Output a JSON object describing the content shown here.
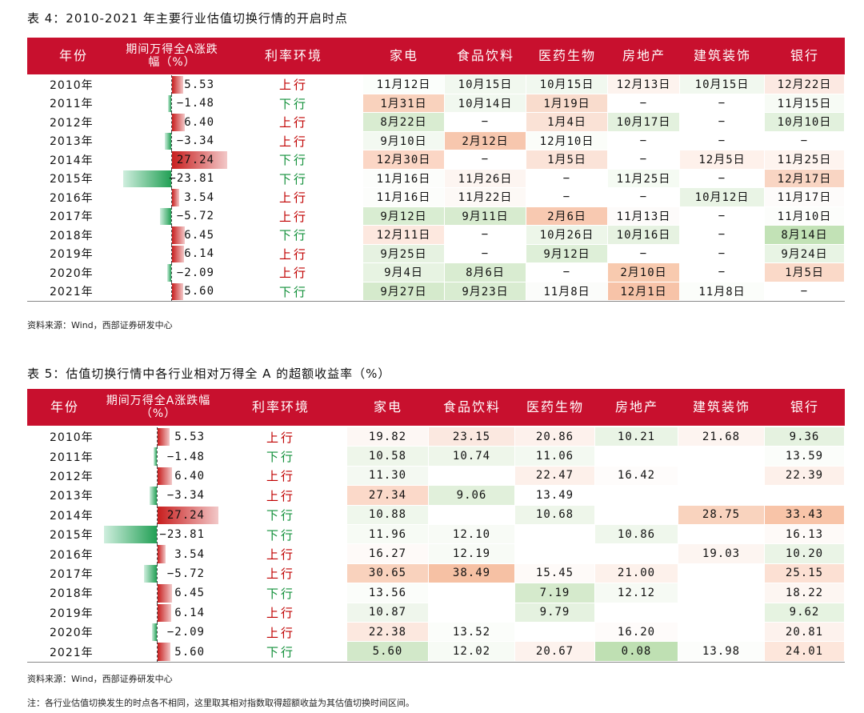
{
  "table4": {
    "caption": "表 4：2010-2021 年主要行业估值切换行情的开启时点",
    "headers": [
      "年份",
      "期间万得全A涨跌幅（%）",
      "利率环境",
      "家电",
      "食品饮料",
      "医药生物",
      "房地产",
      "建筑装饰",
      "银行"
    ],
    "rows": [
      {
        "year": "2010年",
        "change": "5.53",
        "pct": 5.53,
        "rate": "上行",
        "cells": [
          "11月12日",
          "10月15日",
          "10月15日",
          "12月13日",
          "10月15日",
          "12月22日"
        ]
      },
      {
        "year": "2011年",
        "change": "−1.48",
        "pct": -1.48,
        "rate": "下行",
        "cells": [
          "1月31日",
          "10月14日",
          "1月19日",
          "−",
          "−",
          "11月15日"
        ]
      },
      {
        "year": "2012年",
        "change": "6.40",
        "pct": 6.4,
        "rate": "上行",
        "cells": [
          "8月22日",
          "−",
          "1月4日",
          "10月17日",
          "−",
          "10月10日"
        ]
      },
      {
        "year": "2013年",
        "change": "−3.34",
        "pct": -3.34,
        "rate": "上行",
        "cells": [
          "9月10日",
          "2月12日",
          "12月10日",
          "−",
          "−",
          "−"
        ]
      },
      {
        "year": "2014年",
        "change": "27.24",
        "pct": 27.24,
        "rate": "下行",
        "cells": [
          "12月30日",
          "−",
          "1月5日",
          "−",
          "12月5日",
          "11月25日"
        ]
      },
      {
        "year": "2015年",
        "change": "−23.81",
        "pct": -23.81,
        "rate": "下行",
        "cells": [
          "11月16日",
          "11月26日",
          "−",
          "11月25日",
          "−",
          "12月17日"
        ]
      },
      {
        "year": "2016年",
        "change": "3.54",
        "pct": 3.54,
        "rate": "上行",
        "cells": [
          "11月16日",
          "11月22日",
          "−",
          "−",
          "10月12日",
          "11月17日"
        ]
      },
      {
        "year": "2017年",
        "change": "−5.72",
        "pct": -5.72,
        "rate": "上行",
        "cells": [
          "9月12日",
          "9月11日",
          "2月6日",
          "11月13日",
          "−",
          "11月10日"
        ]
      },
      {
        "year": "2018年",
        "change": "6.45",
        "pct": 6.45,
        "rate": "下行",
        "cells": [
          "12月11日",
          "−",
          "10月26日",
          "10月16日",
          "−",
          "8月14日"
        ]
      },
      {
        "year": "2019年",
        "change": "6.14",
        "pct": 6.14,
        "rate": "上行",
        "cells": [
          "9月25日",
          "−",
          "9月12日",
          "−",
          "−",
          "9月24日"
        ]
      },
      {
        "year": "2020年",
        "change": "−2.09",
        "pct": -2.09,
        "rate": "上行",
        "cells": [
          "9月4日",
          "8月6日",
          "−",
          "2月10日",
          "−",
          "1月5日"
        ]
      },
      {
        "year": "2021年",
        "change": "5.60",
        "pct": 5.6,
        "rate": "下行",
        "cells": [
          "9月27日",
          "9月23日",
          "11月8日",
          "12月1日",
          "11月8日",
          "−"
        ]
      }
    ],
    "colors": [
      [
        "#fbfefb",
        "#f1f8ef",
        "#f1f8ef",
        "#fdf3ee",
        "#f1f8ef",
        "#fce9e2"
      ],
      [
        "#f9d2bd",
        "#f1f8ef",
        "#f9dccd",
        "#ffffff",
        "#ffffff",
        "#f7fbf5"
      ],
      [
        "#d9ecd1",
        "#ffffff",
        "#fae2d6",
        "#e3f1de",
        "#ffffff",
        "#e2f1dd"
      ],
      [
        "#f3f9f1",
        "#f7c7ae",
        "#fbfdf9",
        "#ffffff",
        "#ffffff",
        "#ffffff"
      ],
      [
        "#fbd6c5",
        "#ffffff",
        "#fbe3d8",
        "#ffffff",
        "#fef1eb",
        "#fef4ef"
      ],
      [
        "#fcfdfb",
        "#fdf5f1",
        "#ffffff",
        "#f5fbf3",
        "#ffffff",
        "#f9d5c3"
      ],
      [
        "#fcfdfb",
        "#fdf9f6",
        "#ffffff",
        "#ffffff",
        "#e9f4e5",
        "#fdfbfa"
      ],
      [
        "#d9edd2",
        "#d7ebcf",
        "#f8c9b1",
        "#fdfbfa",
        "#ffffff",
        "#fcfdfb"
      ],
      [
        "#fde8df",
        "#ffffff",
        "#edf6e9",
        "#e6f2e1",
        "#ffffff",
        "#c2e2b6"
      ],
      [
        "#e6f2e1",
        "#ffffff",
        "#deefd8",
        "#ffffff",
        "#ffffff",
        "#e8f4e4"
      ],
      [
        "#e7f3e2",
        "#d9ecd1",
        "#ffffff",
        "#f8caaf",
        "#ffffff",
        "#fad9c8"
      ],
      [
        "#d5eacc",
        "#d9ecd1",
        "#fbfcfa",
        "#f7c3a8",
        "#fbfdfa",
        "#ffffff"
      ]
    ],
    "source": "资料来源：Wind，西部证券研发中心"
  },
  "table5": {
    "caption": "表 5：估值切换行情中各行业相对万得全 A 的超额收益率（%）",
    "headers": [
      "年份",
      "期间万得全A涨跌幅（%）",
      "利率环境",
      "家电",
      "食品饮料",
      "医药生物",
      "房地产",
      "建筑装饰",
      "银行"
    ],
    "rows": [
      {
        "year": "2010年",
        "change": "5.53",
        "pct": 5.53,
        "rate": "上行",
        "cells": [
          "19.82",
          "23.15",
          "20.86",
          "10.21",
          "21.68",
          "9.36"
        ]
      },
      {
        "year": "2011年",
        "change": "−1.48",
        "pct": -1.48,
        "rate": "下行",
        "cells": [
          "10.58",
          "10.74",
          "11.06",
          "",
          "",
          "13.59"
        ]
      },
      {
        "year": "2012年",
        "change": "6.40",
        "pct": 6.4,
        "rate": "上行",
        "cells": [
          "11.30",
          "",
          "22.47",
          "16.42",
          "",
          "22.39"
        ]
      },
      {
        "year": "2013年",
        "change": "−3.34",
        "pct": -3.34,
        "rate": "上行",
        "cells": [
          "27.34",
          "9.06",
          "13.49",
          "",
          "",
          ""
        ]
      },
      {
        "year": "2014年",
        "change": "27.24",
        "pct": 27.24,
        "rate": "下行",
        "cells": [
          "10.88",
          "",
          "10.68",
          "",
          "28.75",
          "33.43"
        ]
      },
      {
        "year": "2015年",
        "change": "−23.81",
        "pct": -23.81,
        "rate": "下行",
        "cells": [
          "11.96",
          "12.10",
          "",
          "10.86",
          "",
          "16.13"
        ]
      },
      {
        "year": "2016年",
        "change": "3.54",
        "pct": 3.54,
        "rate": "上行",
        "cells": [
          "16.27",
          "12.19",
          "",
          "",
          "19.03",
          "10.20"
        ]
      },
      {
        "year": "2017年",
        "change": "−5.72",
        "pct": -5.72,
        "rate": "上行",
        "cells": [
          "30.65",
          "38.49",
          "15.45",
          "21.00",
          "",
          "25.15"
        ]
      },
      {
        "year": "2018年",
        "change": "6.45",
        "pct": 6.45,
        "rate": "下行",
        "cells": [
          "13.56",
          "",
          "7.19",
          "12.12",
          "",
          "18.22"
        ]
      },
      {
        "year": "2019年",
        "change": "6.14",
        "pct": 6.14,
        "rate": "上行",
        "cells": [
          "10.87",
          "",
          "9.79",
          "",
          "",
          "9.62"
        ]
      },
      {
        "year": "2020年",
        "change": "−2.09",
        "pct": -2.09,
        "rate": "上行",
        "cells": [
          "22.38",
          "13.52",
          "",
          "16.20",
          "",
          "20.81"
        ]
      },
      {
        "year": "2021年",
        "change": "5.60",
        "pct": 5.6,
        "rate": "下行",
        "cells": [
          "5.60",
          "12.02",
          "20.67",
          "0.08",
          "13.98",
          "24.01"
        ]
      }
    ],
    "colors": [
      [
        "#fdf7f4",
        "#fbe8e0",
        "#fdf1ec",
        "#e9f4e5",
        "#fdf4f0",
        "#e5f2e0"
      ],
      [
        "#eef6ea",
        "#eef6ea",
        "#f3f9f1",
        "#ffffff",
        "#ffffff",
        "#fbfdfa"
      ],
      [
        "#f4f9f2",
        "#ffffff",
        "#fdf0ea",
        "#fefcfb",
        "#ffffff",
        "#fdf0ea"
      ],
      [
        "#fbd9c9",
        "#e1f0db",
        "#ffffff",
        "#ffffff",
        "#ffffff",
        "#ffffff"
      ],
      [
        "#eff7ec",
        "#ffffff",
        "#eef6ea",
        "#ffffff",
        "#f9d3be",
        "#f8c4a8"
      ],
      [
        "#f7fbf5",
        "#f8fbf6",
        "#ffffff",
        "#eff7ec",
        "#ffffff",
        "#fefaf8"
      ],
      [
        "#fefaf8",
        "#f8fbf6",
        "#ffffff",
        "#ffffff",
        "#fdf5f1",
        "#eaf4e6"
      ],
      [
        "#f9d2bd",
        "#f6c1a4",
        "#fefaf8",
        "#fdf1eb",
        "#ffffff",
        "#fce0d3"
      ],
      [
        "#fbfdfa",
        "#ffffff",
        "#d5eacc",
        "#f6faf4",
        "#ffffff",
        "#fdf6f2"
      ],
      [
        "#eff6ec",
        "#ffffff",
        "#e5f2e0",
        "#ffffff",
        "#ffffff",
        "#e6f3e1"
      ],
      [
        "#fce8df",
        "#fbfdfa",
        "#ffffff",
        "#fefbfa",
        "#ffffff",
        "#fdf2ed"
      ],
      [
        "#d2e8c9",
        "#f7fbf5",
        "#fdf2ed",
        "#bfe0b3",
        "#fcfdfb",
        "#fde6db"
      ]
    ],
    "source": "资料来源：Wind，西部证券研发中心",
    "note": "注：各行业估值切换发生的时点各不相同，这里取其相对指数取得超额收益为其估值切换时间区间。"
  }
}
